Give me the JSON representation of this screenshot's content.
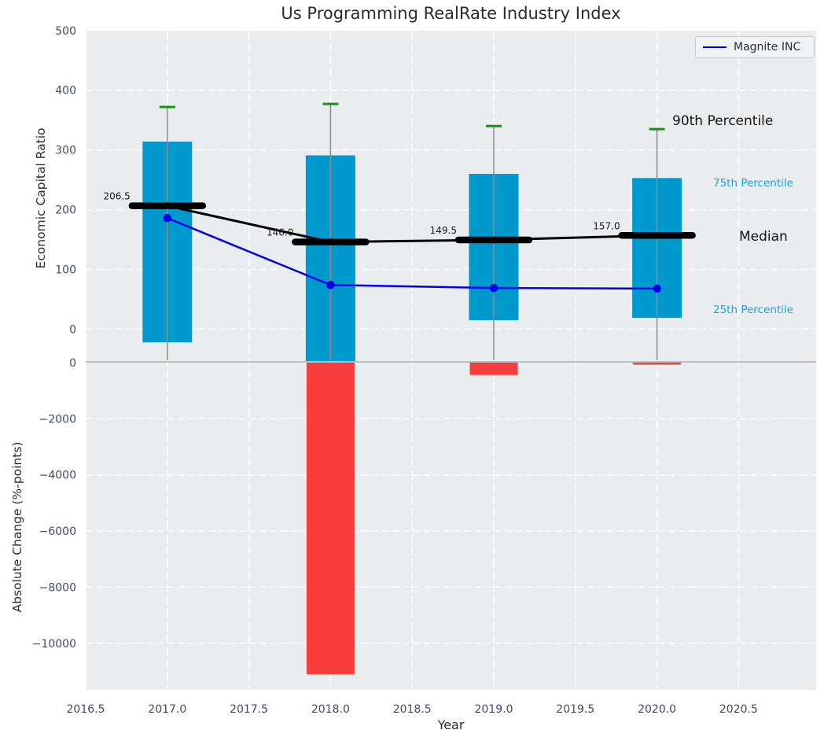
{
  "title": "Us Programming RealRate Industry Index",
  "legend": {
    "label": "Magnite INC"
  },
  "axes": {
    "top_ylabel": "Economic Capital Ratio",
    "bottom_ylabel": "Absolute Change (%-points)",
    "xlabel": "Year"
  },
  "annotations": {
    "p90": "90th Percentile",
    "p75": "75th Percentile",
    "median": "Median",
    "p25": "25th Percentile"
  },
  "colors": {
    "plot_bg": "#e9edef",
    "grid": "#ffffff",
    "box": "#0099cd",
    "bar": "#f93c3c",
    "median_line": "#000000",
    "cap_90th": "#0d990d",
    "whisker": "#8c8c8c",
    "magnite_line": "#0000ee",
    "divider": "#bdbdbd",
    "tick_text": "#3f4c63",
    "cyan_text": "#1ba3d6",
    "label_text": "#1a1a1a"
  },
  "x_axis": {
    "label": "Year",
    "xlim": [
      2016.5,
      2020.97
    ],
    "ticks": [
      {
        "v": 2016.5,
        "t": "2016.5"
      },
      {
        "v": 2017.0,
        "t": "2017.0"
      },
      {
        "v": 2017.5,
        "t": "2017.5"
      },
      {
        "v": 2018.0,
        "t": "2018.0"
      },
      {
        "v": 2018.5,
        "t": "2018.5"
      },
      {
        "v": 2019.0,
        "t": "2019.0"
      },
      {
        "v": 2019.5,
        "t": "2019.5"
      },
      {
        "v": 2020.0,
        "t": "2020.0"
      },
      {
        "v": 2020.5,
        "t": "2020.5"
      }
    ]
  },
  "chart_data": [
    {
      "panel": "top",
      "type": "boxplot+line",
      "title": "Us Programming RealRate Industry Index",
      "ylabel": "Economic Capital Ratio",
      "ylim": [
        -55,
        500
      ],
      "grid": true,
      "yticks": [
        {
          "v": 0,
          "t": "0"
        },
        {
          "v": 100,
          "t": "100"
        },
        {
          "v": 200,
          "t": "200"
        },
        {
          "v": 300,
          "t": "300"
        },
        {
          "v": 400,
          "t": "400"
        },
        {
          "v": 500,
          "t": "500"
        }
      ],
      "boxes": [
        {
          "x": 2017,
          "p90": 372,
          "q75": 314,
          "median": 206.5,
          "median_label": "206.5",
          "q25": -22,
          "q25_clipped": false
        },
        {
          "x": 2018,
          "p90": 377,
          "q75": 291,
          "median": 146.0,
          "median_label": "146.0",
          "q25": -60,
          "q25_clipped": true
        },
        {
          "x": 2019,
          "p90": 340,
          "q75": 260,
          "median": 149.5,
          "median_label": "149.5",
          "q25": 15,
          "q25_clipped": false
        },
        {
          "x": 2020,
          "p90": 335,
          "q75": 253,
          "median": 157.0,
          "median_label": "157.0",
          "q25": 19,
          "q25_clipped": false
        }
      ],
      "series": [
        {
          "name": "Magnite INC",
          "points": [
            {
              "x": 2017,
              "y": 186
            },
            {
              "x": 2018,
              "y": 74
            },
            {
              "x": 2019,
              "y": 69
            },
            {
              "x": 2020,
              "y": 68
            }
          ]
        }
      ]
    },
    {
      "panel": "bottom",
      "type": "bar",
      "ylabel": "Absolute Change (%-points)",
      "ylim": [
        -11670,
        0
      ],
      "grid": true,
      "yticks": [
        {
          "v": 0,
          "t": "0"
        },
        {
          "v": -2000,
          "t": "−2000"
        },
        {
          "v": -4000,
          "t": "−4000"
        },
        {
          "v": -6000,
          "t": "−6000"
        },
        {
          "v": -8000,
          "t": "−8000"
        },
        {
          "v": -10000,
          "t": "−10000"
        }
      ],
      "bars": [
        {
          "x": 2018,
          "v": -11100
        },
        {
          "x": 2019,
          "v": -440
        },
        {
          "x": 2020,
          "v": -70
        }
      ]
    }
  ]
}
